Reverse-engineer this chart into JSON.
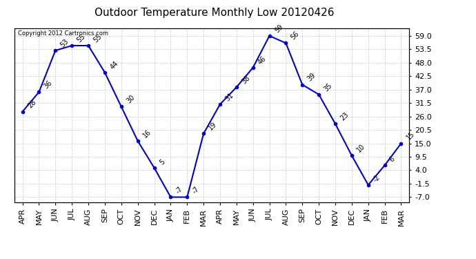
{
  "title": "Outdoor Temperature Monthly Low 20120426",
  "copyright_text": "Copyright 2012 Cartronics.com",
  "months": [
    "APR",
    "MAY",
    "JUN",
    "JUL",
    "AUG",
    "SEP",
    "OCT",
    "NOV",
    "DEC",
    "JAN",
    "FEB",
    "MAR",
    "APR",
    "MAY",
    "JUN",
    "JUL",
    "AUG",
    "SEP",
    "OCT",
    "NOV",
    "DEC",
    "JAN",
    "FEB",
    "MAR"
  ],
  "values": [
    28,
    36,
    53,
    55,
    55,
    44,
    30,
    16,
    5,
    -7,
    -7,
    19,
    31,
    38,
    46,
    59,
    56,
    39,
    35,
    23,
    10,
    -2,
    6,
    15
  ],
  "yticks": [
    -7.0,
    -1.5,
    4.0,
    9.5,
    15.0,
    20.5,
    26.0,
    31.5,
    37.0,
    42.5,
    48.0,
    53.5,
    59.0
  ],
  "line_color": "#0000cc",
  "marker_color": "#0000cc",
  "bg_color": "#ffffff",
  "grid_color": "#c8c8c8",
  "title_fontsize": 11,
  "tick_fontsize": 8,
  "annot_fontsize": 7
}
